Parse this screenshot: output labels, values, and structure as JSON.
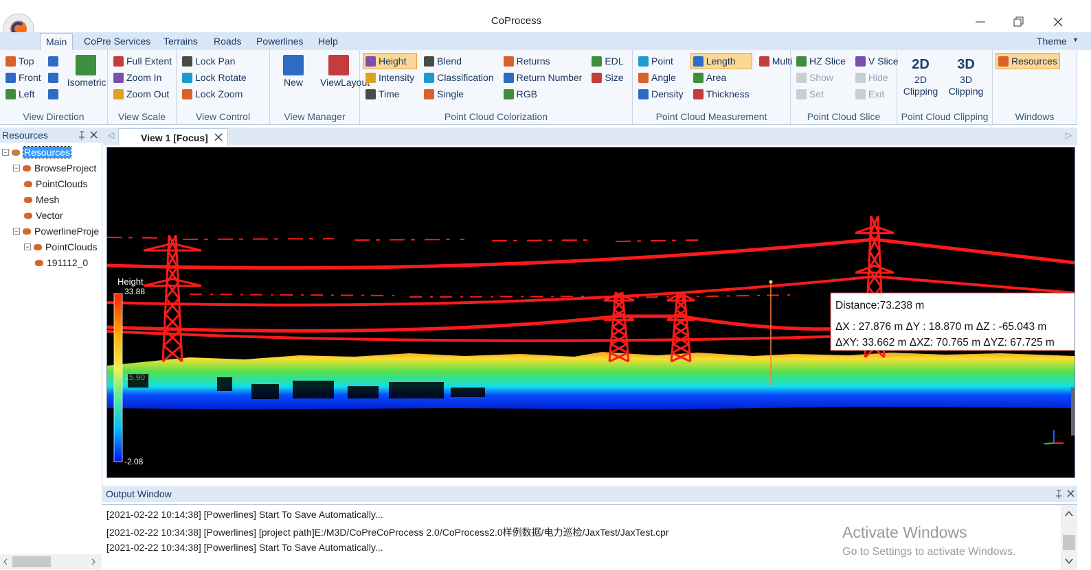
{
  "title": "CoProcess",
  "theme": "Theme",
  "tabs": [
    "Main",
    "CoPre Services",
    "Terrains",
    "Roads",
    "Powerlines",
    "Help"
  ],
  "ribbon": {
    "groups": [
      {
        "label": "View Direction",
        "columns": [
          [
            {
              "label": "Top"
            },
            {
              "label": "Front"
            },
            {
              "label": "Left"
            }
          ],
          [
            {
              "label": "Isometric"
            }
          ]
        ]
      },
      {
        "label": "View Scale",
        "columns": [
          [
            {
              "label": "Full Extent"
            },
            {
              "label": "Zoom In"
            },
            {
              "label": "Zoom Out"
            }
          ]
        ]
      },
      {
        "label": "View Control",
        "columns": [
          [
            {
              "label": "Lock Pan"
            },
            {
              "label": "Lock Rotate"
            },
            {
              "label": "Lock Zoom"
            }
          ]
        ]
      },
      {
        "label": "View Manager",
        "columns": [
          [
            {
              "label": "New"
            }
          ],
          [
            {
              "label": "ViewLayout"
            }
          ]
        ]
      },
      {
        "label": "Point Cloud Colorization",
        "columns": [
          [
            {
              "label": "Height",
              "active": true
            },
            {
              "label": "Intensity"
            },
            {
              "label": "Time"
            }
          ],
          [
            {
              "label": "Blend"
            },
            {
              "label": "Classification"
            },
            {
              "label": "Single"
            }
          ],
          [
            {
              "label": "Returns"
            },
            {
              "label": "Return Number"
            },
            {
              "label": "RGB"
            }
          ],
          [
            {
              "label": "EDL"
            },
            {
              "label": "Size"
            }
          ]
        ]
      },
      {
        "label": "Point Cloud Measurement",
        "columns": [
          [
            {
              "label": "Point"
            },
            {
              "label": "Angle"
            },
            {
              "label": "Density"
            }
          ],
          [
            {
              "label": "Length",
              "active": true
            },
            {
              "label": "Area"
            },
            {
              "label": "Thickness"
            }
          ],
          [
            {
              "label": "Multi"
            }
          ]
        ]
      },
      {
        "label": "Point Cloud Slice",
        "columns": [
          [
            {
              "label": "HZ Slice"
            },
            {
              "label": "Show",
              "disabled": true
            },
            {
              "label": "Set",
              "disabled": true
            }
          ],
          [
            {
              "label": "V Slice"
            },
            {
              "label": "Hide",
              "disabled": true
            },
            {
              "label": "Exit",
              "disabled": true
            }
          ]
        ]
      },
      {
        "label": "Point Cloud Clipping",
        "columns": [
          [
            {
              "icon": "2D",
              "label": "2D Clipping"
            }
          ],
          [
            {
              "icon": "3D",
              "label": "3D Clipping"
            }
          ]
        ]
      },
      {
        "label": "Windows",
        "columns": [
          [
            {
              "label": "Resources",
              "active": true
            }
          ]
        ]
      }
    ]
  },
  "resources": {
    "title": "Resources",
    "tree": {
      "label": "Resources",
      "children": [
        {
          "label": "BrowseProject",
          "children": [
            {
              "label": "PointClouds"
            },
            {
              "label": "Mesh"
            },
            {
              "label": "Vector"
            }
          ]
        },
        {
          "label": "PowerlineProje",
          "children": [
            {
              "label": "PointClouds",
              "children": [
                {
                  "label": "191112_0"
                }
              ]
            }
          ]
        }
      ]
    }
  },
  "view": {
    "tab": "View 1 [Focus]",
    "legend": {
      "title": "Height",
      "max": "33.88",
      "mid": "15.90",
      "min": "-2.08"
    },
    "measurement": [
      "Distance:73.238 m",
      "ΔX : 27.876 m ΔY : 18.870 m ΔZ : -65.043 m",
      "ΔXY: 33.662 m ΔXZ: 70.765 m ΔYZ: 67.725 m"
    ]
  },
  "output": {
    "title": "Output Window",
    "lines": [
      "[2021-02-22 10:14:38] [Powerlines] Start To Save Automatically...",
      "[2021-02-22 10:34:38] [Powerlines] [project path]E:/M3D/CoPreCoProcess 2.0/CoProcess2.0样例数据/电力巡检/JaxTest/JaxTest.cpr",
      "[2021-02-22 10:34:38] [Powerlines] Start To Save Automatically..."
    ]
  },
  "watermark": {
    "title": "Activate Windows",
    "text": "Go to Settings to activate Windows."
  }
}
